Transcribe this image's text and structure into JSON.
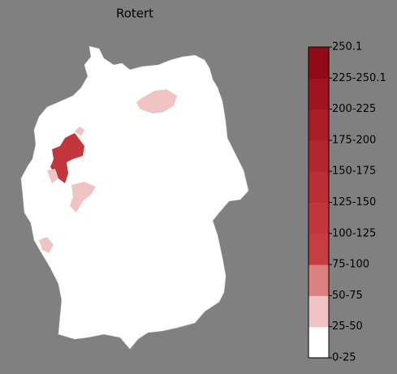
{
  "title": "Rotert",
  "colorbar": {
    "ticks": [
      "0-25",
      "25-50",
      "50-75",
      "75-100",
      "100-125",
      "125-150",
      "150-175",
      "175-200",
      "200-225",
      "225-250.1",
      "250.1"
    ],
    "colors": [
      "#ffffff",
      "#f0c4c4",
      "#dc8080",
      "#c83d42",
      "#c2363b",
      "#bb2e35",
      "#b3262e",
      "#aa1d27",
      "#a0131f",
      "#920a19"
    ]
  }
}
